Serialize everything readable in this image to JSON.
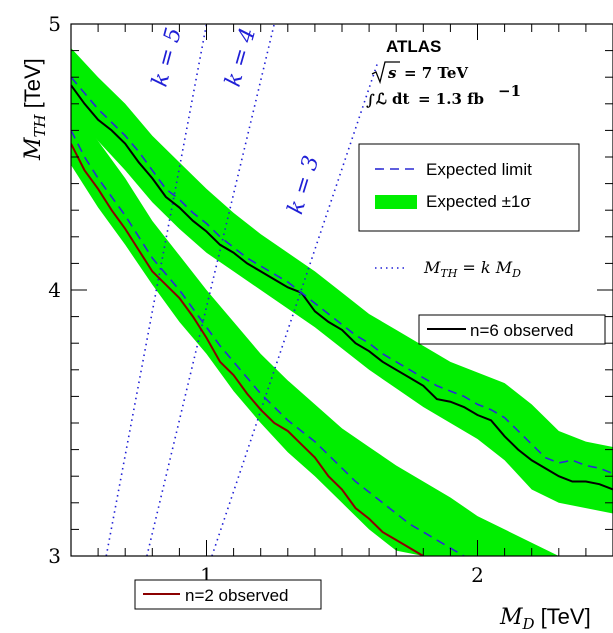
{
  "chart_data": {
    "type": "line",
    "xlabel_math": "M",
    "xlabel_math_sub": "D",
    "xlabel_unit": "[TeV]",
    "ylabel_math": "M",
    "ylabel_math_sub": "TH",
    "ylabel_unit": "[TeV]",
    "xlim": [
      0.5,
      2.5
    ],
    "ylim": [
      3,
      5
    ],
    "x_ticks": [
      1,
      2
    ],
    "x_tick_labels": [
      "1",
      "2"
    ],
    "y_ticks": [
      3,
      4,
      5
    ],
    "y_tick_labels": [
      "3",
      "4",
      "5"
    ],
    "annotations": {
      "experiment": "ATLAS",
      "energy_sqrt": "s",
      "energy_value": "= 7 TeV",
      "lumi_integral": "∫",
      "lumi_symbol": "ℒ dt",
      "lumi_value": "= 1.3 fb",
      "lumi_exp": "−1"
    },
    "legend": {
      "placement": "upper-right",
      "expected_label": "Expected limit",
      "band_label": "Expected ±1σ",
      "k_line_label_left": "M",
      "k_line_label_sub1": "TH",
      "k_line_label_mid": " = k M",
      "k_line_label_sub2": "D"
    },
    "inline_labels": {
      "n6": "n=6 observed",
      "n2": "n=2 observed"
    },
    "colors": {
      "band": "#00ee00",
      "expected": "#2a2ad4",
      "n6_observed": "#000000",
      "n2_observed": "#8b0000",
      "k_lines": "#1f1fd6"
    },
    "k_lines": [
      {
        "label": "k = 5",
        "x": [
          0.63,
          1.0
        ],
        "y": [
          3.0,
          5.0
        ]
      },
      {
        "label": "k = 4",
        "x": [
          0.78,
          1.25
        ],
        "y": [
          3.0,
          5.0
        ]
      },
      {
        "label": "k = 3",
        "x": [
          1.02,
          1.63
        ],
        "y": [
          3.0,
          4.85
        ]
      }
    ],
    "series": [
      {
        "name": "n=6 observed",
        "x": [
          0.5,
          0.55,
          0.6,
          0.65,
          0.7,
          0.75,
          0.8,
          0.85,
          0.9,
          0.95,
          1.0,
          1.05,
          1.1,
          1.15,
          1.2,
          1.25,
          1.3,
          1.35,
          1.4,
          1.45,
          1.5,
          1.55,
          1.6,
          1.65,
          1.7,
          1.75,
          1.8,
          1.85,
          1.9,
          1.95,
          2.0,
          2.05,
          2.1,
          2.15,
          2.2,
          2.25,
          2.3,
          2.35,
          2.4,
          2.45,
          2.5
        ],
        "y": [
          4.77,
          4.7,
          4.64,
          4.6,
          4.55,
          4.48,
          4.42,
          4.35,
          4.31,
          4.26,
          4.22,
          4.17,
          4.14,
          4.1,
          4.07,
          4.04,
          4.01,
          3.99,
          3.92,
          3.88,
          3.85,
          3.8,
          3.77,
          3.73,
          3.7,
          3.67,
          3.64,
          3.59,
          3.58,
          3.56,
          3.53,
          3.51,
          3.45,
          3.4,
          3.36,
          3.33,
          3.3,
          3.28,
          3.28,
          3.27,
          3.25
        ]
      },
      {
        "name": "n=6 expected",
        "x": [
          0.5,
          0.55,
          0.6,
          0.65,
          0.7,
          0.75,
          0.8,
          0.85,
          0.9,
          0.95,
          1.0,
          1.05,
          1.1,
          1.15,
          1.2,
          1.25,
          1.3,
          1.35,
          1.4,
          1.45,
          1.5,
          1.55,
          1.6,
          1.65,
          1.7,
          1.75,
          1.8,
          1.85,
          1.9,
          1.95,
          2.0,
          2.05,
          2.1,
          2.15,
          2.2,
          2.25,
          2.3,
          2.35,
          2.4,
          2.45,
          2.5
        ],
        "y": [
          4.8,
          4.74,
          4.68,
          4.63,
          4.58,
          4.52,
          4.45,
          4.38,
          4.34,
          4.29,
          4.25,
          4.2,
          4.16,
          4.12,
          4.09,
          4.06,
          4.03,
          3.99,
          3.95,
          3.91,
          3.87,
          3.83,
          3.8,
          3.76,
          3.73,
          3.7,
          3.67,
          3.64,
          3.62,
          3.6,
          3.57,
          3.55,
          3.52,
          3.47,
          3.42,
          3.37,
          3.35,
          3.36,
          3.34,
          3.33,
          3.31
        ]
      },
      {
        "name": "n=2 observed",
        "x": [
          0.5,
          0.55,
          0.6,
          0.65,
          0.7,
          0.75,
          0.8,
          0.85,
          0.9,
          0.95,
          1.0,
          1.05,
          1.1,
          1.15,
          1.2,
          1.25,
          1.3,
          1.35,
          1.4,
          1.45,
          1.5,
          1.55,
          1.6,
          1.65,
          1.7,
          1.75,
          1.8
        ],
        "y": [
          4.55,
          4.45,
          4.38,
          4.3,
          4.23,
          4.15,
          4.07,
          4.02,
          3.97,
          3.9,
          3.82,
          3.73,
          3.68,
          3.61,
          3.55,
          3.5,
          3.47,
          3.42,
          3.37,
          3.3,
          3.25,
          3.18,
          3.14,
          3.09,
          3.06,
          3.03,
          3.0
        ]
      },
      {
        "name": "n=2 expected",
        "x": [
          0.5,
          0.55,
          0.6,
          0.65,
          0.7,
          0.75,
          0.8,
          0.85,
          0.9,
          0.95,
          1.0,
          1.05,
          1.1,
          1.15,
          1.2,
          1.25,
          1.3,
          1.35,
          1.4,
          1.45,
          1.5,
          1.55,
          1.6,
          1.65,
          1.7,
          1.75,
          1.8,
          1.85,
          1.9,
          1.95
        ],
        "y": [
          4.6,
          4.5,
          4.42,
          4.35,
          4.28,
          4.2,
          4.12,
          4.06,
          4.0,
          3.93,
          3.86,
          3.79,
          3.73,
          3.67,
          3.61,
          3.56,
          3.51,
          3.47,
          3.43,
          3.38,
          3.33,
          3.28,
          3.24,
          3.2,
          3.16,
          3.12,
          3.09,
          3.06,
          3.03,
          3.0
        ]
      }
    ],
    "bands": [
      {
        "name": "n=6 expected ±1σ",
        "x": [
          0.5,
          0.6,
          0.7,
          0.8,
          0.9,
          1.0,
          1.1,
          1.2,
          1.3,
          1.4,
          1.5,
          1.6,
          1.7,
          1.8,
          1.9,
          2.0,
          2.1,
          2.2,
          2.3,
          2.4,
          2.5
        ],
        "lower": [
          4.68,
          4.56,
          4.45,
          4.33,
          4.23,
          4.14,
          4.07,
          4.0,
          3.93,
          3.86,
          3.78,
          3.7,
          3.63,
          3.56,
          3.5,
          3.44,
          3.36,
          3.25,
          3.2,
          3.18,
          3.16
        ],
        "upper": [
          4.91,
          4.8,
          4.7,
          4.58,
          4.48,
          4.38,
          4.29,
          4.21,
          4.14,
          4.07,
          3.99,
          3.91,
          3.85,
          3.79,
          3.73,
          3.69,
          3.65,
          3.57,
          3.47,
          3.43,
          3.41
        ]
      },
      {
        "name": "n=2 expected ±1σ",
        "x": [
          0.5,
          0.6,
          0.7,
          0.8,
          0.9,
          1.0,
          1.1,
          1.2,
          1.3,
          1.4,
          1.5,
          1.6,
          1.7,
          1.8,
          1.9,
          2.0,
          2.1,
          2.2,
          2.3,
          2.4,
          2.5
        ],
        "lower": [
          4.47,
          4.31,
          4.17,
          4.02,
          3.88,
          3.76,
          3.62,
          3.5,
          3.39,
          3.3,
          3.2,
          3.1,
          3.02,
          3.0,
          3.0,
          3.0,
          3.0,
          3.0,
          3.0,
          3.0,
          3.0
        ],
        "upper": [
          4.7,
          4.56,
          4.42,
          4.26,
          4.13,
          4.0,
          3.88,
          3.76,
          3.66,
          3.57,
          3.48,
          3.41,
          3.34,
          3.28,
          3.22,
          3.15,
          3.1,
          3.05,
          3.0,
          3.0,
          3.0
        ]
      }
    ]
  }
}
